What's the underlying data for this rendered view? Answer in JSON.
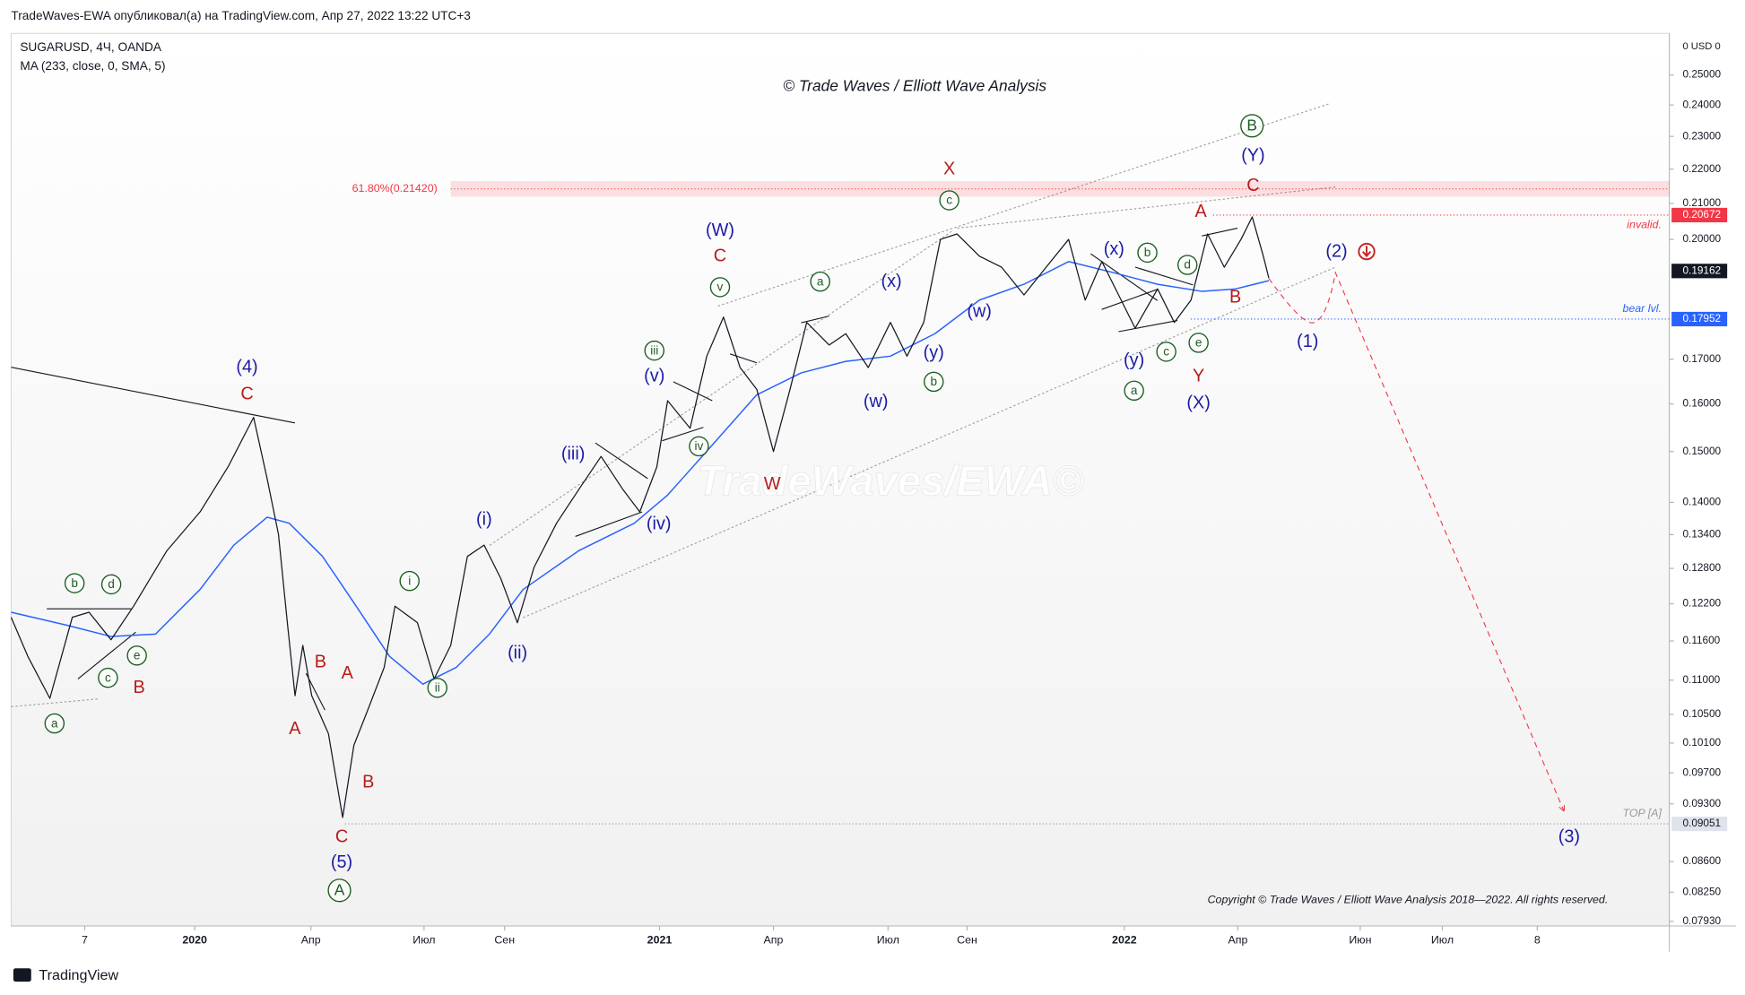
{
  "header": "TradeWaves-EWA опубликовал(а) на TradingView.com, Апр 27, 2022 13:22 UTC+3",
  "footer": "TradingView",
  "chart_data": {
    "type": "line",
    "title": "© Trade Waves / Elliott Wave Analysis",
    "watermark": "TradeWaves/EWA©",
    "copyright": "Copyright © Trade Waves / Elliott Wave Analysis 2018—2022. All rights reserved.",
    "currency": "0 USD 0",
    "log_scale_y": true,
    "grid": false,
    "xlim": [
      -4.74,
      38.07
    ],
    "ylim": [
      0.0788,
      0.2645
    ],
    "xticks": [
      {
        "value": -2.84,
        "label": "7"
      },
      {
        "value": 0,
        "label": "2020"
      },
      {
        "value": 3,
        "label": "Апр"
      },
      {
        "value": 5.92,
        "label": "Июл"
      },
      {
        "value": 8,
        "label": "Сен"
      },
      {
        "value": 12,
        "label": "2021"
      },
      {
        "value": 14.94,
        "label": "Апр"
      },
      {
        "value": 17.9,
        "label": "Июл"
      },
      {
        "value": 19.94,
        "label": "Сен"
      },
      {
        "value": 24,
        "label": "2022"
      },
      {
        "value": 26.93,
        "label": "Апр"
      },
      {
        "value": 30.09,
        "label": "Июн"
      },
      {
        "value": 32.21,
        "label": "Июл"
      },
      {
        "value": 34.66,
        "label": "8"
      }
    ],
    "yticks": [
      {
        "value": 0.25,
        "label": "0.25000"
      },
      {
        "value": 0.24,
        "label": "0.24000"
      },
      {
        "value": 0.23,
        "label": "0.23000"
      },
      {
        "value": 0.22,
        "label": "0.22000"
      },
      {
        "value": 0.21,
        "label": "0.21000"
      },
      {
        "value": 0.2,
        "label": "0.20000"
      },
      {
        "value": 0.17,
        "label": "0.17000"
      },
      {
        "value": 0.16,
        "label": "0.16000"
      },
      {
        "value": 0.15,
        "label": "0.15000"
      },
      {
        "value": 0.14,
        "label": "0.14000"
      },
      {
        "value": 0.134,
        "label": "0.13400"
      },
      {
        "value": 0.128,
        "label": "0.12800"
      },
      {
        "value": 0.122,
        "label": "0.12200"
      },
      {
        "value": 0.116,
        "label": "0.11600"
      },
      {
        "value": 0.11,
        "label": "0.11000"
      },
      {
        "value": 0.105,
        "label": "0.10500"
      },
      {
        "value": 0.101,
        "label": "0.10100"
      },
      {
        "value": 0.097,
        "label": "0.09700"
      },
      {
        "value": 0.093,
        "label": "0.09300"
      },
      {
        "value": 0.086,
        "label": "0.08600"
      },
      {
        "value": 0.0825,
        "label": "0.08250"
      },
      {
        "value": 0.0793,
        "label": "0.07930"
      }
    ],
    "series": [
      {
        "name": "SUGARUSD, 4Ч, OANDA",
        "color": "#131722",
        "x": [
          -4.74,
          -4.31,
          -3.74,
          -3.16,
          -2.73,
          -2.16,
          -1.58,
          -0.72,
          0.14,
          0.86,
          1.52,
          1.87,
          2.16,
          2.39,
          2.59,
          2.79,
          3.02,
          3.45,
          3.82,
          4.11,
          4.45,
          4.89,
          5.17,
          5.75,
          6.18,
          6.61,
          7.04,
          7.47,
          7.9,
          8.33,
          8.76,
          9.34,
          9.91,
          10.49,
          11.06,
          11.49,
          11.93,
          12.21,
          12.79,
          13.22,
          13.65,
          14.08,
          14.51,
          14.94,
          15.37,
          15.8,
          16.38,
          16.81,
          17.39,
          17.96,
          18.39,
          18.82,
          19.25,
          19.68,
          20.26,
          20.83,
          21.41,
          21.98,
          22.56,
          22.99,
          23.42,
          23.85,
          24.28,
          24.86,
          25.29,
          25.72,
          26.15,
          26.58,
          27.01,
          27.3,
          27.59,
          27.73
        ],
        "values": [
          0.1198,
          0.1136,
          0.1073,
          0.1198,
          0.1206,
          0.1162,
          0.1216,
          0.1311,
          0.1382,
          0.1469,
          0.1571,
          0.1445,
          0.1341,
          0.1189,
          0.1077,
          0.1153,
          0.1077,
          0.1023,
          0.0913,
          0.1007,
          0.1054,
          0.1119,
          0.1216,
          0.1189,
          0.1102,
          0.1153,
          0.1301,
          0.1321,
          0.1263,
          0.1189,
          0.1282,
          0.1361,
          0.1424,
          0.149,
          0.1424,
          0.1382,
          0.1469,
          0.1607,
          0.1548,
          0.1707,
          0.18,
          0.1681,
          0.1632,
          0.15,
          0.1632,
          0.1787,
          0.1733,
          0.176,
          0.1681,
          0.1787,
          0.1707,
          0.1787,
          0.2,
          0.2015,
          0.1955,
          0.1926,
          0.1855,
          0.1926,
          0.2,
          0.1842,
          0.1941,
          0.1855,
          0.1773,
          0.187,
          0.1787,
          0.1842,
          0.2015,
          0.1926,
          0.2,
          0.2062,
          0.1955,
          0.1898
        ]
      },
      {
        "name": "MA (233, close, 0, SMA, 5)",
        "color": "#2962ff",
        "x": [
          -4.74,
          -3.3,
          -2.16,
          -1.01,
          0.14,
          1.01,
          1.87,
          2.44,
          3.3,
          4.17,
          5.03,
          5.89,
          6.75,
          7.61,
          8.48,
          9.91,
          11.35,
          12.21,
          13.36,
          14.51,
          15.66,
          16.81,
          17.96,
          19.11,
          20.26,
          21.41,
          22.56,
          23.71,
          24.86,
          26.01,
          26.87,
          27.73
        ],
        "values": [
          0.1206,
          0.1185,
          0.1167,
          0.1171,
          0.1244,
          0.1321,
          0.1372,
          0.1361,
          0.1301,
          0.1216,
          0.1136,
          0.1094,
          0.1119,
          0.1171,
          0.1244,
          0.1311,
          0.1361,
          0.1414,
          0.1513,
          0.162,
          0.1669,
          0.1695,
          0.1707,
          0.176,
          0.1842,
          0.1882,
          0.1941,
          0.1912,
          0.1882,
          0.1864,
          0.187,
          0.1891
        ]
      }
    ],
    "fib": {
      "value": 0.2142,
      "label": "61.80%(0.21420)"
    },
    "levels": [
      {
        "value": 0.20672,
        "note": "invalid.",
        "color": "#f23645"
      },
      {
        "value": 0.19162,
        "color": "#131722"
      },
      {
        "value": 0.17952,
        "note": "bear lvl.",
        "color": "#2962ff"
      },
      {
        "value": 0.09051,
        "note": "TOP [A]",
        "color": "#9598a1"
      }
    ],
    "wave_labels": [
      "(4)",
      "C",
      "b",
      "d",
      "c",
      "e",
      "B",
      "a",
      "B",
      "A",
      "A",
      "B",
      "C",
      "(5)",
      "A",
      "i",
      "ii",
      "(i)",
      "(ii)",
      "(iii)",
      "(iv)",
      "iii",
      "(v)",
      "iv",
      "(W)",
      "C",
      "v",
      "W",
      "a",
      "(x)",
      "(w)",
      "(y)",
      "b",
      "X",
      "c",
      "(w)",
      "(x)",
      "b",
      "d",
      "A",
      "B",
      "(y)",
      "c",
      "e",
      "Y",
      "a",
      "(X)",
      "B",
      "(Y)",
      "C",
      "(2)",
      "(1)",
      "(3)"
    ]
  }
}
